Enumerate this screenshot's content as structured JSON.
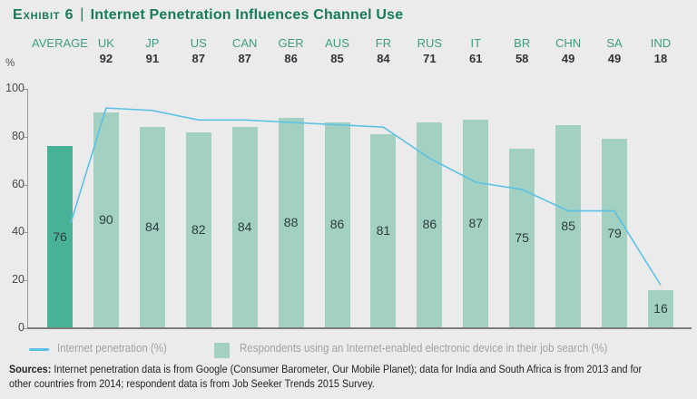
{
  "title": {
    "exhibit": "Exhibit 6",
    "separator": "|",
    "text": "Internet Penetration Influences Channel Use"
  },
  "y_axis": {
    "unit": "%",
    "ticks": [
      100,
      80,
      60,
      40,
      20,
      0
    ]
  },
  "legend": {
    "line_label": "Internet penetration (%)",
    "bar_label": "Respondents using an Internet-enabled electronic device in their job search (%)"
  },
  "sources": {
    "label": "Sources:",
    "line1": " Internet penetration data is from Google (Consumer Barometer, Our Mobile Planet); data for India and South Africa is from 2013 and for",
    "line2": "other countries from 2014; respondent data is from Job Seeker Trends 2015 Survey."
  },
  "colors": {
    "background": "#EBEBEB",
    "title_green": "#177A5B",
    "category_teal": "#3F9C84",
    "number_dark": "#2F3439",
    "axis_gray": "#7B7B7B"
  },
  "chart_data": {
    "type": "bar",
    "title": "Exhibit 6 | Internet Penetration Influences Channel Use",
    "categories": [
      "AVERAGE",
      "UK",
      "JP",
      "US",
      "CAN",
      "GER",
      "AUS",
      "FR",
      "RUS",
      "IT",
      "BR",
      "CHN",
      "SA",
      "IND"
    ],
    "series": [
      {
        "name": "Internet penetration (%)",
        "type": "line",
        "values": [
          null,
          92,
          91,
          87,
          87,
          86,
          85,
          84,
          71,
          61,
          58,
          49,
          49,
          18
        ]
      },
      {
        "name": "Respondents using an Internet-enabled electronic device in their job search (%)",
        "type": "bar",
        "values": [
          76,
          90,
          84,
          82,
          84,
          88,
          86,
          81,
          86,
          87,
          75,
          85,
          79,
          16
        ]
      }
    ],
    "ylabel": "%",
    "ylim": [
      0,
      100
    ],
    "yticks": [
      100,
      80,
      60,
      40,
      20,
      0
    ],
    "grid": false,
    "legend_position": "bottom",
    "highlight_category": "AVERAGE",
    "line_visible_start_value": 44,
    "colors": {
      "bar": "#A3D1C1",
      "bar_highlight": "#48B298",
      "line": "#5BC2E7"
    }
  }
}
